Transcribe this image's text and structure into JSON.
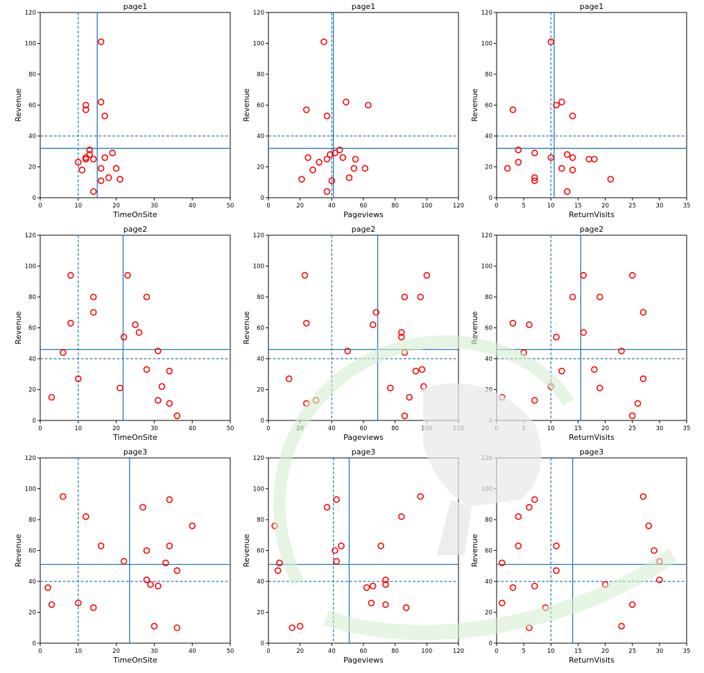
{
  "style": {
    "marker_color": "#ff0000",
    "line_color": "#1f77b4",
    "axis_color": "#000000",
    "watermark_color": "#c8e8c0"
  },
  "chart_data": [
    {
      "type": "scatter",
      "title": "page1",
      "xlabel": "TimeOnSite",
      "ylabel": "Revenue",
      "xlim": [
        0,
        50
      ],
      "ylim": [
        0,
        120
      ],
      "xticks": [
        0,
        10,
        20,
        30,
        40,
        50
      ],
      "yticks": [
        0,
        20,
        40,
        60,
        80,
        100,
        120
      ],
      "vline_solid": 15,
      "vline_dashed": 10,
      "hline_solid": 32,
      "hline_dashed": 40,
      "points": [
        [
          16,
          101
        ],
        [
          12,
          60
        ],
        [
          12,
          57
        ],
        [
          16,
          62
        ],
        [
          17,
          53
        ],
        [
          13,
          31
        ],
        [
          12,
          26
        ],
        [
          12,
          25
        ],
        [
          13,
          28
        ],
        [
          14,
          25
        ],
        [
          10,
          23
        ],
        [
          11,
          18
        ],
        [
          17,
          26
        ],
        [
          19,
          29
        ],
        [
          16,
          19
        ],
        [
          20,
          19
        ],
        [
          18,
          13
        ],
        [
          16,
          11
        ],
        [
          21,
          12
        ],
        [
          14,
          4
        ]
      ]
    },
    {
      "type": "scatter",
      "title": "page1",
      "xlabel": "Pageviews",
      "ylabel": "Revenue",
      "xlim": [
        0,
        120
      ],
      "ylim": [
        0,
        120
      ],
      "xticks": [
        0,
        20,
        40,
        60,
        80,
        100,
        120
      ],
      "yticks": [
        0,
        20,
        40,
        60,
        80,
        100,
        120
      ],
      "vline_solid": 41,
      "vline_dashed": 40,
      "hline_solid": 32,
      "hline_dashed": 40,
      "points": [
        [
          35,
          101
        ],
        [
          24,
          57
        ],
        [
          37,
          53
        ],
        [
          49,
          62
        ],
        [
          63,
          60
        ],
        [
          25,
          26
        ],
        [
          32,
          23
        ],
        [
          28,
          18
        ],
        [
          37,
          25
        ],
        [
          39,
          28
        ],
        [
          42,
          29
        ],
        [
          45,
          31
        ],
        [
          47,
          26
        ],
        [
          55,
          25
        ],
        [
          54,
          19
        ],
        [
          61,
          19
        ],
        [
          51,
          13
        ],
        [
          40,
          11
        ],
        [
          21,
          12
        ],
        [
          37,
          4
        ]
      ]
    },
    {
      "type": "scatter",
      "title": "page1",
      "xlabel": "ReturnVisits",
      "ylabel": "Revenue",
      "xlim": [
        0,
        35
      ],
      "ylim": [
        0,
        120
      ],
      "xticks": [
        0,
        5,
        10,
        15,
        20,
        25,
        30,
        35
      ],
      "yticks": [
        0,
        20,
        40,
        60,
        80,
        100,
        120
      ],
      "vline_solid": 10.6,
      "vline_dashed": 10,
      "hline_solid": 32,
      "hline_dashed": 40,
      "points": [
        [
          10,
          101
        ],
        [
          3,
          57
        ],
        [
          11,
          60
        ],
        [
          12,
          62
        ],
        [
          14,
          53
        ],
        [
          4,
          31
        ],
        [
          7,
          29
        ],
        [
          4,
          23
        ],
        [
          2,
          19
        ],
        [
          7,
          13
        ],
        [
          7,
          11
        ],
        [
          10,
          26
        ],
        [
          12,
          19
        ],
        [
          13,
          28
        ],
        [
          14,
          26
        ],
        [
          14,
          18
        ],
        [
          17,
          25
        ],
        [
          18,
          25
        ],
        [
          13,
          4
        ],
        [
          21,
          12
        ]
      ]
    },
    {
      "type": "scatter",
      "title": "page2",
      "xlabel": "TimeOnSite",
      "ylabel": "Revenue",
      "xlim": [
        0,
        50
      ],
      "ylim": [
        0,
        120
      ],
      "xticks": [
        0,
        10,
        20,
        30,
        40,
        50
      ],
      "yticks": [
        0,
        20,
        40,
        60,
        80,
        100,
        120
      ],
      "vline_solid": 21.8,
      "vline_dashed": 10,
      "hline_solid": 46,
      "hline_dashed": 40,
      "points": [
        [
          8,
          94
        ],
        [
          23,
          94
        ],
        [
          14,
          80
        ],
        [
          28,
          80
        ],
        [
          14,
          70
        ],
        [
          8,
          63
        ],
        [
          25,
          62
        ],
        [
          26,
          57
        ],
        [
          22,
          54
        ],
        [
          6,
          44
        ],
        [
          31,
          45
        ],
        [
          10,
          27
        ],
        [
          28,
          33
        ],
        [
          34,
          32
        ],
        [
          32,
          22
        ],
        [
          21,
          21
        ],
        [
          3,
          15
        ],
        [
          31,
          13
        ],
        [
          34,
          11
        ],
        [
          36,
          3
        ]
      ]
    },
    {
      "type": "scatter",
      "title": "page2",
      "xlabel": "Pageviews",
      "ylabel": "Revenue",
      "xlim": [
        0,
        120
      ],
      "ylim": [
        0,
        120
      ],
      "xticks": [
        0,
        20,
        40,
        60,
        80,
        100,
        120
      ],
      "yticks": [
        0,
        20,
        40,
        60,
        80,
        100,
        120
      ],
      "vline_solid": 69,
      "vline_dashed": 40,
      "hline_solid": 46,
      "hline_dashed": 40,
      "points": [
        [
          23,
          94
        ],
        [
          100,
          94
        ],
        [
          86,
          80
        ],
        [
          96,
          80
        ],
        [
          68,
          70
        ],
        [
          24,
          63
        ],
        [
          66,
          62
        ],
        [
          84,
          57
        ],
        [
          84,
          54
        ],
        [
          50,
          45
        ],
        [
          86,
          44
        ],
        [
          13,
          27
        ],
        [
          93,
          32
        ],
        [
          97,
          33
        ],
        [
          77,
          21
        ],
        [
          98,
          22
        ],
        [
          89,
          15
        ],
        [
          30,
          13
        ],
        [
          24,
          11
        ],
        [
          86,
          3
        ]
      ]
    },
    {
      "type": "scatter",
      "title": "page2",
      "xlabel": "ReturnVisits",
      "ylabel": "Revenue",
      "xlim": [
        0,
        35
      ],
      "ylim": [
        0,
        120
      ],
      "xticks": [
        0,
        5,
        10,
        15,
        20,
        25,
        30,
        35
      ],
      "yticks": [
        0,
        20,
        40,
        60,
        80,
        100,
        120
      ],
      "vline_solid": 15.5,
      "vline_dashed": 10,
      "hline_solid": 46,
      "hline_dashed": 40,
      "points": [
        [
          16,
          94
        ],
        [
          25,
          94
        ],
        [
          14,
          80
        ],
        [
          19,
          80
        ],
        [
          27,
          70
        ],
        [
          3,
          63
        ],
        [
          6,
          62
        ],
        [
          16,
          57
        ],
        [
          11,
          54
        ],
        [
          5,
          44
        ],
        [
          23,
          45
        ],
        [
          27,
          27
        ],
        [
          18,
          33
        ],
        [
          12,
          32
        ],
        [
          10,
          22
        ],
        [
          19,
          21
        ],
        [
          1,
          15
        ],
        [
          7,
          13
        ],
        [
          26,
          11
        ],
        [
          25,
          3
        ]
      ]
    },
    {
      "type": "scatter",
      "title": "page3",
      "xlabel": "TimeOnSite",
      "ylabel": "Revenue",
      "xlim": [
        0,
        50
      ],
      "ylim": [
        0,
        120
      ],
      "xticks": [
        0,
        10,
        20,
        30,
        40,
        50
      ],
      "yticks": [
        0,
        20,
        40,
        60,
        80,
        100,
        120
      ],
      "vline_solid": 23.5,
      "vline_dashed": 10,
      "hline_solid": 51,
      "hline_dashed": 40,
      "points": [
        [
          6,
          95
        ],
        [
          34,
          93
        ],
        [
          27,
          88
        ],
        [
          12,
          82
        ],
        [
          40,
          76
        ],
        [
          16,
          63
        ],
        [
          34,
          63
        ],
        [
          28,
          60
        ],
        [
          22,
          53
        ],
        [
          33,
          52
        ],
        [
          36,
          47
        ],
        [
          28,
          41
        ],
        [
          29,
          38
        ],
        [
          31,
          37
        ],
        [
          2,
          36
        ],
        [
          10,
          26
        ],
        [
          3,
          25
        ],
        [
          14,
          23
        ],
        [
          30,
          11
        ],
        [
          36,
          10
        ]
      ]
    },
    {
      "type": "scatter",
      "title": "page3",
      "xlabel": "Pageviews",
      "ylabel": "Revenue",
      "xlim": [
        0,
        120
      ],
      "ylim": [
        0,
        120
      ],
      "xticks": [
        0,
        20,
        40,
        60,
        80,
        100,
        120
      ],
      "yticks": [
        0,
        20,
        40,
        60,
        80,
        100,
        120
      ],
      "vline_solid": 51,
      "vline_dashed": 41,
      "hline_solid": 51,
      "hline_dashed": 40,
      "points": [
        [
          96,
          95
        ],
        [
          43,
          93
        ],
        [
          37,
          88
        ],
        [
          84,
          82
        ],
        [
          4,
          76
        ],
        [
          46,
          63
        ],
        [
          71,
          63
        ],
        [
          42,
          60
        ],
        [
          43,
          53
        ],
        [
          7,
          52
        ],
        [
          6,
          47
        ],
        [
          74,
          41
        ],
        [
          74,
          38
        ],
        [
          66,
          37
        ],
        [
          62,
          36
        ],
        [
          65,
          26
        ],
        [
          74,
          25
        ],
        [
          87,
          23
        ],
        [
          20,
          11
        ],
        [
          15,
          10
        ]
      ]
    },
    {
      "type": "scatter",
      "title": "page3",
      "xlabel": "ReturnVisits",
      "ylabel": "Revenue",
      "xlim": [
        0,
        35
      ],
      "ylim": [
        0,
        120
      ],
      "xticks": [
        0,
        5,
        10,
        15,
        20,
        25,
        30,
        35
      ],
      "yticks": [
        0,
        20,
        40,
        60,
        80,
        100,
        120
      ],
      "vline_solid": 14,
      "vline_dashed": 10,
      "hline_solid": 51,
      "hline_dashed": 40,
      "points": [
        [
          27,
          95
        ],
        [
          7,
          93
        ],
        [
          6,
          88
        ],
        [
          4,
          82
        ],
        [
          28,
          76
        ],
        [
          4,
          63
        ],
        [
          11,
          63
        ],
        [
          29,
          60
        ],
        [
          30,
          53
        ],
        [
          1,
          52
        ],
        [
          11,
          47
        ],
        [
          30,
          41
        ],
        [
          20,
          38
        ],
        [
          7,
          37
        ],
        [
          3,
          36
        ],
        [
          1,
          26
        ],
        [
          25,
          25
        ],
        [
          9,
          23
        ],
        [
          23,
          11
        ],
        [
          6,
          10
        ]
      ]
    }
  ]
}
